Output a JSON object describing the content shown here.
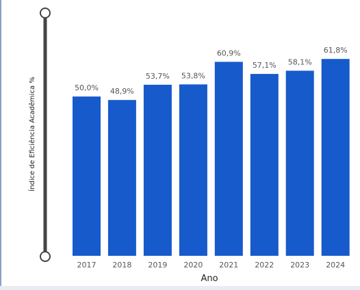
{
  "chart_data": {
    "type": "bar",
    "categories": [
      "2017",
      "2018",
      "2019",
      "2020",
      "2021",
      "2022",
      "2023",
      "2024"
    ],
    "values": [
      50.0,
      48.9,
      53.7,
      53.8,
      60.9,
      57.1,
      58.1,
      61.8
    ],
    "data_labels": [
      "50,0%",
      "48,9%",
      "53,7%",
      "53,8%",
      "60,9%",
      "57,1%",
      "58,1%",
      "61,8%"
    ],
    "xlabel": "Ano",
    "ylabel": "Índice de Eficiência Acadêmica %",
    "ylim": [
      0,
      70
    ],
    "grid": false,
    "bar_color": "#175ACB"
  },
  "slider": {
    "track_color": "#444444",
    "handle_fill": "#ffffff",
    "handle_stroke": "#444444"
  }
}
